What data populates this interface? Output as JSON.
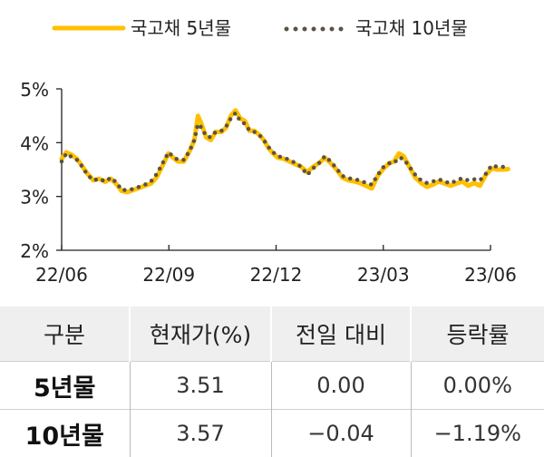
{
  "chart_data": {
    "type": "line",
    "title": "",
    "xlabel": "",
    "ylabel": "",
    "x_ticks": [
      "22/06",
      "22/09",
      "22/12",
      "23/03",
      "23/06"
    ],
    "y_ticks": [
      "2%",
      "3%",
      "4%",
      "5%"
    ],
    "ylim": [
      2,
      5
    ],
    "grid": false,
    "legend_position": "top",
    "series": [
      {
        "name": "국고채 5년물",
        "color": "#FFC000",
        "style": "solid",
        "points": [
          [
            "2022-06-01",
            3.7
          ],
          [
            "2022-06-05",
            3.82
          ],
          [
            "2022-06-09",
            3.78
          ],
          [
            "2022-06-14",
            3.7
          ],
          [
            "2022-06-18",
            3.58
          ],
          [
            "2022-06-23",
            3.42
          ],
          [
            "2022-06-28",
            3.3
          ],
          [
            "2022-07-03",
            3.33
          ],
          [
            "2022-07-08",
            3.27
          ],
          [
            "2022-07-13",
            3.33
          ],
          [
            "2022-07-18",
            3.22
          ],
          [
            "2022-07-22",
            3.1
          ],
          [
            "2022-07-27",
            3.08
          ],
          [
            "2022-08-01",
            3.12
          ],
          [
            "2022-08-06",
            3.16
          ],
          [
            "2022-08-11",
            3.2
          ],
          [
            "2022-08-16",
            3.24
          ],
          [
            "2022-08-21",
            3.36
          ],
          [
            "2022-08-26",
            3.58
          ],
          [
            "2022-08-31",
            3.8
          ],
          [
            "2022-09-04",
            3.72
          ],
          [
            "2022-09-08",
            3.65
          ],
          [
            "2022-09-13",
            3.65
          ],
          [
            "2022-09-18",
            3.85
          ],
          [
            "2022-09-22",
            4.05
          ],
          [
            "2022-09-25",
            4.5
          ],
          [
            "2022-09-28",
            4.35
          ],
          [
            "2022-10-02",
            4.1
          ],
          [
            "2022-10-06",
            4.05
          ],
          [
            "2022-10-10",
            4.2
          ],
          [
            "2022-10-15",
            4.2
          ],
          [
            "2022-10-19",
            4.28
          ],
          [
            "2022-10-23",
            4.5
          ],
          [
            "2022-10-27",
            4.6
          ],
          [
            "2022-10-31",
            4.45
          ],
          [
            "2022-11-04",
            4.4
          ],
          [
            "2022-11-08",
            4.22
          ],
          [
            "2022-11-12",
            4.22
          ],
          [
            "2022-11-16",
            4.15
          ],
          [
            "2022-11-20",
            4.05
          ],
          [
            "2022-11-24",
            3.9
          ],
          [
            "2022-11-28",
            3.8
          ],
          [
            "2022-12-02",
            3.72
          ],
          [
            "2022-12-07",
            3.7
          ],
          [
            "2022-12-12",
            3.65
          ],
          [
            "2022-12-17",
            3.6
          ],
          [
            "2022-12-22",
            3.55
          ],
          [
            "2022-12-27",
            3.45
          ],
          [
            "2023-01-01",
            3.55
          ],
          [
            "2023-01-06",
            3.62
          ],
          [
            "2023-01-11",
            3.72
          ],
          [
            "2023-01-16",
            3.62
          ],
          [
            "2023-01-21",
            3.5
          ],
          [
            "2023-01-26",
            3.35
          ],
          [
            "2023-01-31",
            3.3
          ],
          [
            "2023-02-05",
            3.28
          ],
          [
            "2023-02-10",
            3.25
          ],
          [
            "2023-02-15",
            3.2
          ],
          [
            "2023-02-20",
            3.15
          ],
          [
            "2023-02-25",
            3.38
          ],
          [
            "2023-03-02",
            3.52
          ],
          [
            "2023-03-07",
            3.62
          ],
          [
            "2023-03-11",
            3.65
          ],
          [
            "2023-03-15",
            3.8
          ],
          [
            "2023-03-19",
            3.75
          ],
          [
            "2023-03-24",
            3.55
          ],
          [
            "2023-03-29",
            3.35
          ],
          [
            "2023-04-03",
            3.25
          ],
          [
            "2023-04-08",
            3.18
          ],
          [
            "2023-04-13",
            3.22
          ],
          [
            "2023-04-18",
            3.28
          ],
          [
            "2023-04-23",
            3.24
          ],
          [
            "2023-04-28",
            3.2
          ],
          [
            "2023-05-03",
            3.24
          ],
          [
            "2023-05-08",
            3.28
          ],
          [
            "2023-05-13",
            3.2
          ],
          [
            "2023-05-18",
            3.25
          ],
          [
            "2023-05-23",
            3.2
          ],
          [
            "2023-05-28",
            3.4
          ],
          [
            "2023-06-02",
            3.52
          ],
          [
            "2023-06-07",
            3.5
          ],
          [
            "2023-06-12",
            3.5
          ],
          [
            "2023-06-16",
            3.51
          ]
        ]
      },
      {
        "name": "국고채 10년물",
        "color": "#5B5246",
        "style": "dotted",
        "points": [
          [
            "2022-06-01",
            3.65
          ],
          [
            "2022-06-05",
            3.8
          ],
          [
            "2022-06-09",
            3.74
          ],
          [
            "2022-06-14",
            3.68
          ],
          [
            "2022-06-18",
            3.57
          ],
          [
            "2022-06-23",
            3.4
          ],
          [
            "2022-06-28",
            3.3
          ],
          [
            "2022-07-03",
            3.33
          ],
          [
            "2022-07-08",
            3.28
          ],
          [
            "2022-07-13",
            3.35
          ],
          [
            "2022-07-18",
            3.25
          ],
          [
            "2022-07-22",
            3.12
          ],
          [
            "2022-07-27",
            3.12
          ],
          [
            "2022-08-01",
            3.14
          ],
          [
            "2022-08-06",
            3.18
          ],
          [
            "2022-08-11",
            3.22
          ],
          [
            "2022-08-16",
            3.28
          ],
          [
            "2022-08-21",
            3.42
          ],
          [
            "2022-08-26",
            3.62
          ],
          [
            "2022-08-31",
            3.82
          ],
          [
            "2022-09-04",
            3.74
          ],
          [
            "2022-09-08",
            3.68
          ],
          [
            "2022-09-13",
            3.68
          ],
          [
            "2022-09-18",
            3.85
          ],
          [
            "2022-09-22",
            4.05
          ],
          [
            "2022-09-25",
            4.35
          ],
          [
            "2022-09-28",
            4.28
          ],
          [
            "2022-10-02",
            4.12
          ],
          [
            "2022-10-06",
            4.1
          ],
          [
            "2022-10-10",
            4.2
          ],
          [
            "2022-10-15",
            4.22
          ],
          [
            "2022-10-19",
            4.3
          ],
          [
            "2022-10-23",
            4.45
          ],
          [
            "2022-10-27",
            4.55
          ],
          [
            "2022-10-31",
            4.4
          ],
          [
            "2022-11-04",
            4.35
          ],
          [
            "2022-11-08",
            4.22
          ],
          [
            "2022-11-12",
            4.2
          ],
          [
            "2022-11-16",
            4.15
          ],
          [
            "2022-11-20",
            4.05
          ],
          [
            "2022-11-24",
            3.92
          ],
          [
            "2022-11-28",
            3.82
          ],
          [
            "2022-12-02",
            3.75
          ],
          [
            "2022-12-07",
            3.72
          ],
          [
            "2022-12-12",
            3.68
          ],
          [
            "2022-12-17",
            3.62
          ],
          [
            "2022-12-22",
            3.55
          ],
          [
            "2022-12-27",
            3.4
          ],
          [
            "2023-01-01",
            3.52
          ],
          [
            "2023-01-06",
            3.62
          ],
          [
            "2023-01-11",
            3.75
          ],
          [
            "2023-01-16",
            3.65
          ],
          [
            "2023-01-21",
            3.52
          ],
          [
            "2023-01-26",
            3.38
          ],
          [
            "2023-01-31",
            3.34
          ],
          [
            "2023-02-05",
            3.32
          ],
          [
            "2023-02-10",
            3.3
          ],
          [
            "2023-02-15",
            3.25
          ],
          [
            "2023-02-20",
            3.22
          ],
          [
            "2023-02-25",
            3.4
          ],
          [
            "2023-03-02",
            3.55
          ],
          [
            "2023-03-07",
            3.62
          ],
          [
            "2023-03-11",
            3.62
          ],
          [
            "2023-03-15",
            3.72
          ],
          [
            "2023-03-19",
            3.7
          ],
          [
            "2023-03-24",
            3.55
          ],
          [
            "2023-03-29",
            3.4
          ],
          [
            "2023-04-03",
            3.3
          ],
          [
            "2023-04-08",
            3.25
          ],
          [
            "2023-04-13",
            3.28
          ],
          [
            "2023-04-18",
            3.32
          ],
          [
            "2023-04-23",
            3.28
          ],
          [
            "2023-04-28",
            3.24
          ],
          [
            "2023-05-03",
            3.3
          ],
          [
            "2023-05-08",
            3.34
          ],
          [
            "2023-05-13",
            3.3
          ],
          [
            "2023-05-18",
            3.32
          ],
          [
            "2023-05-23",
            3.3
          ],
          [
            "2023-05-28",
            3.42
          ],
          [
            "2023-06-02",
            3.58
          ],
          [
            "2023-06-07",
            3.55
          ],
          [
            "2023-06-12",
            3.55
          ],
          [
            "2023-06-16",
            3.57
          ]
        ]
      }
    ]
  },
  "table": {
    "headers": [
      "구분",
      "현재가(%)",
      "전일 대비",
      "등락률"
    ],
    "rows": [
      [
        "5년물",
        "3.51",
        "0.00",
        "0.00%"
      ],
      [
        "10년물",
        "3.57",
        "−0.04",
        "−1.19%"
      ]
    ]
  }
}
